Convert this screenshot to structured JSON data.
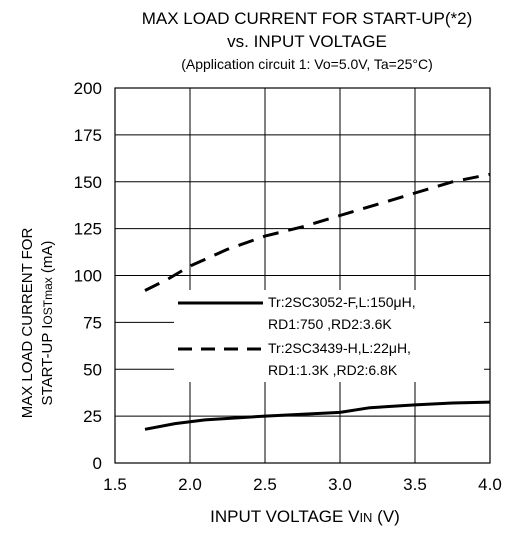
{
  "chart_data": {
    "type": "line",
    "title": "MAX LOAD CURRENT FOR START-UP(*2)",
    "subtitle": "vs. INPUT VOLTAGE",
    "conditions": "(Application circuit 1: Vo=5.0V, Ta=25°C)",
    "xlabel": {
      "main": "INPUT VOLTAGE V",
      "sub": "IN",
      "suffix": " (V)"
    },
    "ylabel": {
      "line1": "MAX LOAD CURRENT FOR",
      "line2_prefix": "START-UP  I",
      "line2_sub": "OSTmax",
      "line2_suffix": " (mA)"
    },
    "xlim": [
      1.5,
      4.0
    ],
    "ylim": [
      0,
      200
    ],
    "xticks": [
      "1.5",
      "2.0",
      "2.5",
      "3.0",
      "3.5",
      "4.0"
    ],
    "yticks": [
      "0",
      "25",
      "50",
      "75",
      "100",
      "125",
      "150",
      "175",
      "200"
    ],
    "xtick_values": [
      1.5,
      2.0,
      2.5,
      3.0,
      3.5,
      4.0
    ],
    "ytick_values": [
      0,
      25,
      50,
      75,
      100,
      125,
      150,
      175,
      200
    ],
    "grid": true,
    "legend_position": "center-right",
    "series": [
      {
        "name_line1": "Tr:2SC3052-F,L:150μH,",
        "name_line2": "RD1:750   ,RD2:3.6K",
        "style": "solid",
        "color": "#000000",
        "points": [
          [
            1.7,
            18
          ],
          [
            1.9,
            21
          ],
          [
            2.1,
            23
          ],
          [
            2.3,
            24
          ],
          [
            2.5,
            25
          ],
          [
            2.75,
            26
          ],
          [
            3.0,
            27
          ],
          [
            3.2,
            29.5
          ],
          [
            3.5,
            31
          ],
          [
            3.75,
            32
          ],
          [
            4.0,
            32.5
          ]
        ]
      },
      {
        "name_line1": "Tr:2SC3439-H,L:22μH,",
        "name_line2": "RD1:1.3K   ,RD2:6.8K",
        "style": "dashed",
        "color": "#000000",
        "points": [
          [
            1.7,
            92
          ],
          [
            1.85,
            98
          ],
          [
            2.0,
            105
          ],
          [
            2.25,
            114
          ],
          [
            2.5,
            121
          ],
          [
            2.75,
            126
          ],
          [
            3.0,
            132
          ],
          [
            3.25,
            138
          ],
          [
            3.5,
            144
          ],
          [
            3.75,
            150
          ],
          [
            4.0,
            154
          ]
        ]
      }
    ]
  }
}
